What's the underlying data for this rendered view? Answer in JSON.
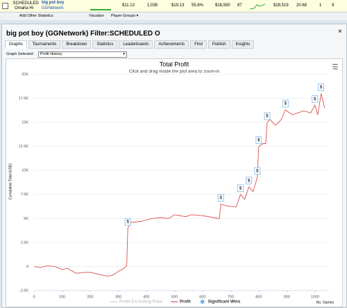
{
  "stats_row": {
    "site_label": ":SCHEDULED",
    "game": "Omaha Hi",
    "player": "big pot boy",
    "network": "GGNetwork",
    "cells": [
      "$11.13",
      "1,036",
      "$19.13",
      "55.8%",
      "$16,590",
      "87",
      "$28,519",
      "20.68",
      "1",
      "9"
    ]
  },
  "toolbar": {
    "items": [
      "Add Other Statistics",
      "Visualize",
      "Player Groups ▾"
    ]
  },
  "panel": {
    "title": "big pot boy (GGNetwork) Filter:SCHEDULED O",
    "close": "×",
    "tabs": [
      "Graphs",
      "Tournaments",
      "Breakdown",
      "Statistics",
      "Leaderboards",
      "Achievements",
      "Find",
      "Publish",
      "Insights"
    ],
    "active_tab": 0,
    "graph_selected_label": "Graph Selected:",
    "graph_selected": "Profit History"
  },
  "chart": {
    "type": "line",
    "title": "Total Profit",
    "subtitle": "Click and drag inside the plot area to zoom-in",
    "ylabel": "Cumulative Total (USD)",
    "xlabel": "No. Games",
    "menu": "☰",
    "xlim": [
      0,
      1050
    ],
    "xticks": [
      0,
      100,
      200,
      300,
      400,
      500,
      600,
      700,
      800,
      900,
      1000
    ],
    "ylim": [
      -2500,
      20000
    ],
    "yticks": [
      {
        "value": -2500,
        "label": "-2.5K"
      },
      0,
      {
        "value": 2500,
        "label": "2.5K"
      },
      {
        "value": 5000,
        "label": "5K"
      },
      {
        "value": 7500,
        "label": "7.5K"
      },
      {
        "value": 10000,
        "label": "10K"
      },
      {
        "value": 12500,
        "label": "12.5K"
      },
      {
        "value": 15000,
        "label": "15K"
      },
      {
        "value": 17500,
        "label": "17.5K"
      },
      {
        "value": 20000,
        "label": "20K"
      }
    ],
    "grid": true,
    "series": [
      {
        "name": "Profit Excluding Rake",
        "color": "#cccccc",
        "visible": false
      },
      {
        "name": "Profit",
        "color": "#d9534f",
        "visible": true,
        "x": [
          0,
          20,
          50,
          80,
          100,
          120,
          150,
          180,
          200,
          230,
          260,
          280,
          300,
          320,
          330,
          334,
          345,
          380,
          420,
          450,
          480,
          500,
          540,
          560,
          600,
          640,
          660,
          665,
          690,
          720,
          735,
          750,
          765,
          780,
          795,
          800,
          815,
          825,
          830,
          840,
          860,
          880,
          895,
          920,
          940,
          960,
          985,
          1000,
          1010,
          1022,
          1035
        ],
        "values": [
          0,
          -100,
          100,
          -50,
          -300,
          -200,
          -700,
          -600,
          -600,
          -800,
          -1000,
          -900,
          -500,
          -200,
          100,
          4000,
          4600,
          4700,
          5000,
          5100,
          5000,
          5400,
          5200,
          5400,
          5300,
          5100,
          5000,
          6500,
          6300,
          6200,
          7500,
          7000,
          8300,
          7800,
          9300,
          12500,
          12800,
          12800,
          15000,
          15300,
          14700,
          15300,
          16300,
          15800,
          16000,
          16200,
          16000,
          16800,
          15800,
          18000,
          16500
        ]
      },
      {
        "name": "Significant Wins",
        "color": "#7cb5ec",
        "visible": true,
        "marker_label": "$",
        "x": [
          334,
          665,
          735,
          765,
          795,
          800,
          830,
          895,
          1000,
          1022
        ],
        "values": [
          4000,
          6500,
          7500,
          8300,
          9300,
          12500,
          15000,
          16300,
          16800,
          18000
        ]
      }
    ]
  }
}
